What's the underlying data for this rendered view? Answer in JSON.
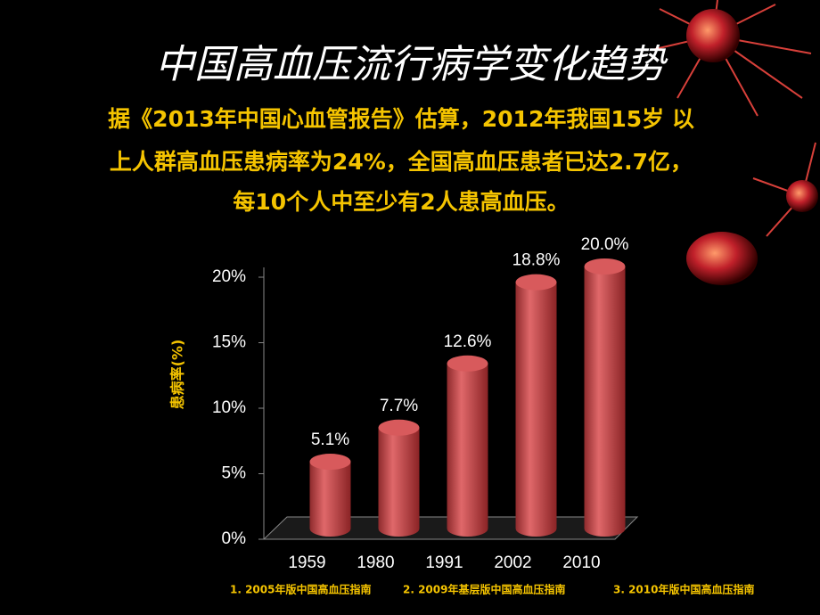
{
  "chart_data": {
    "type": "bar",
    "title": "中国高血压流行病学变化趋势",
    "subtitle_lines": [
      "据《2013年中国心血管报告》估算，2012年我国15岁 以",
      "上人群高血压患病率为24%，全国高血压患者已达2.7亿，",
      "每10个人中至少有2人患高血压。"
    ],
    "y_label": "患病率(%)",
    "categories": [
      "1959",
      "1980",
      "1991",
      "2002",
      "2010"
    ],
    "values": [
      5.1,
      7.7,
      12.6,
      18.8,
      20.0
    ],
    "value_labels": [
      "5.1%",
      "7.7%",
      "12.6%",
      "18.8%",
      "20.0%"
    ],
    "color": "#c9474a",
    "ylim": [
      0,
      20
    ],
    "yticks": [
      {
        "value": 0,
        "label": "0%"
      },
      {
        "value": 5,
        "label": "5%"
      },
      {
        "value": 10,
        "label": "10%"
      },
      {
        "value": 15,
        "label": "15%"
      },
      {
        "value": 20,
        "label": "20%"
      }
    ],
    "footnotes": [
      "1. 2005年版中国高血压指南",
      "2. 2009年基层版中国高血压指南",
      "3. 2010年版中国高血压指南"
    ]
  }
}
